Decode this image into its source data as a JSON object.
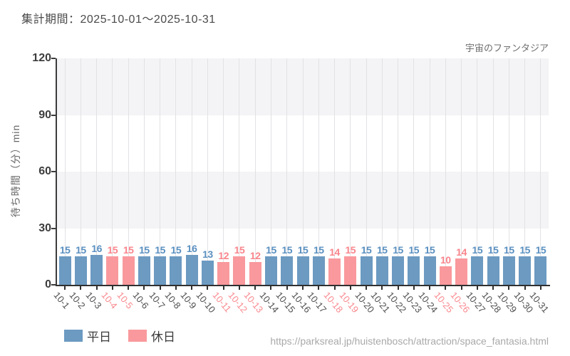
{
  "header": {
    "title": "集計期間：2025-10-01～2025-10-31"
  },
  "footer": {
    "source_url": "https://parksreal.jp/huistenbosch/attraction/space_fantasia.html"
  },
  "legend": {
    "items": [
      {
        "label": "平日",
        "key": "weekday"
      },
      {
        "label": "休日",
        "key": "holiday"
      }
    ]
  },
  "colors": {
    "weekday_bar": "#6c9ac1",
    "holiday_bar": "#f9999d",
    "weekday_value_label": "#5a90c0",
    "holiday_value_label": "#f9858c",
    "weekday_tick_label": "#4f4f4f",
    "holiday_tick_label": "#f9898f",
    "band_gray": "#f4f4f6",
    "band_white": "#ffffff",
    "gridline": "#e2e2e5",
    "axis": "#3c3c3c"
  },
  "chart_data": {
    "type": "bar",
    "title": "宇宙のファンタジア",
    "xlabel": "",
    "ylabel": "待ち時間（分）min",
    "ylim": [
      0,
      120
    ],
    "yticks": [
      0,
      30,
      60,
      90,
      120
    ],
    "grid": "horizontal-bands-and-vertical-lines",
    "legend_position": "bottom-left",
    "categories": [
      "10-1",
      "10-2",
      "10-3",
      "10-4",
      "10-5",
      "10-6",
      "10-7",
      "10-8",
      "10-9",
      "10-10",
      "10-11",
      "10-12",
      "10-13",
      "10-14",
      "10-15",
      "10-16",
      "10-17",
      "10-18",
      "10-19",
      "10-20",
      "10-21",
      "10-22",
      "10-23",
      "10-24",
      "10-25",
      "10-26",
      "10-27",
      "10-28",
      "10-29",
      "10-30",
      "10-31"
    ],
    "values": [
      15,
      15,
      16,
      15,
      15,
      15,
      15,
      15,
      16,
      13,
      12,
      15,
      12,
      15,
      15,
      15,
      15,
      14,
      15,
      15,
      15,
      15,
      15,
      15,
      10,
      14,
      15,
      15,
      15,
      15,
      15
    ],
    "day_type": [
      "weekday",
      "weekday",
      "weekday",
      "holiday",
      "holiday",
      "weekday",
      "weekday",
      "weekday",
      "weekday",
      "weekday",
      "holiday",
      "holiday",
      "holiday",
      "weekday",
      "weekday",
      "weekday",
      "weekday",
      "holiday",
      "holiday",
      "weekday",
      "weekday",
      "weekday",
      "weekday",
      "weekday",
      "holiday",
      "holiday",
      "weekday",
      "weekday",
      "weekday",
      "weekday",
      "weekday"
    ],
    "series": [
      {
        "name": "平日",
        "type": "weekday"
      },
      {
        "name": "休日",
        "type": "holiday"
      }
    ]
  }
}
